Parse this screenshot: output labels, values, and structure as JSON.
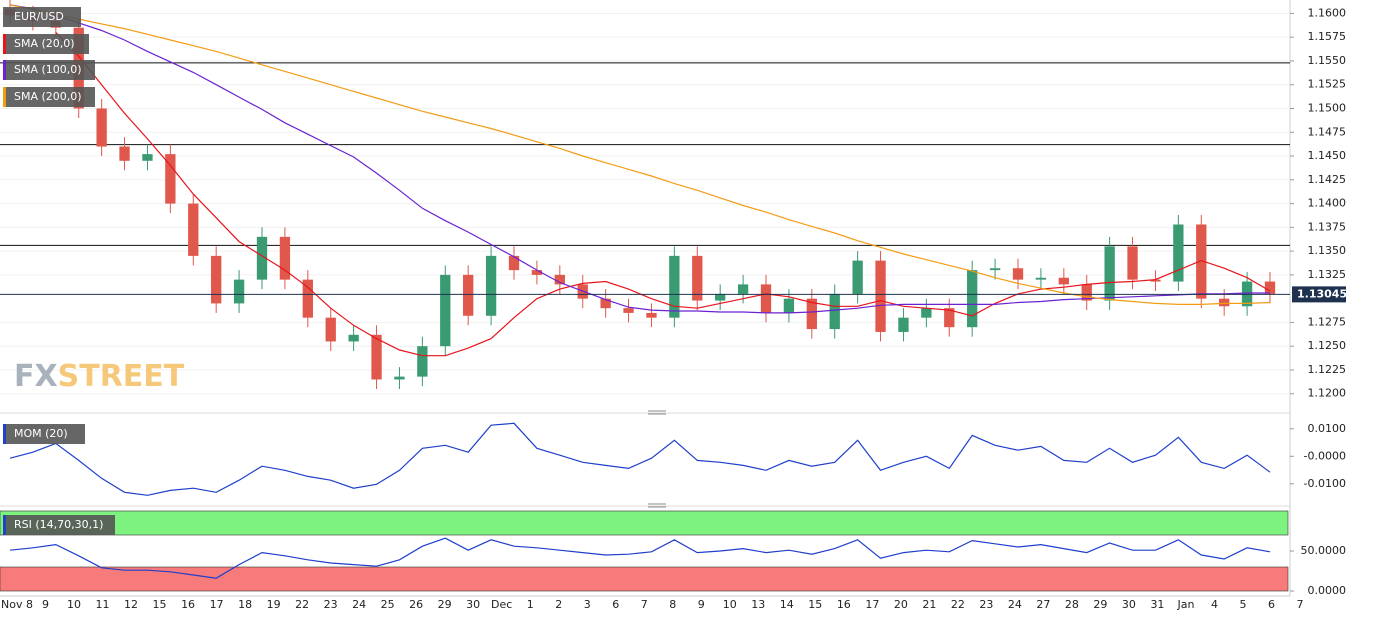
{
  "chart_data": [
    {
      "type": "candlestick",
      "title": "EUR/USD",
      "watermark": [
        "FX",
        "STREET"
      ],
      "x_axis_labels": [
        "Nov 8",
        "9",
        "10",
        "11",
        "12",
        "15",
        "16",
        "17",
        "18",
        "19",
        "22",
        "23",
        "24",
        "25",
        "26",
        "29",
        "30",
        "Dec",
        "1",
        "2",
        "3",
        "6",
        "7",
        "8",
        "9",
        "10",
        "13",
        "14",
        "15",
        "16",
        "17",
        "20",
        "21",
        "22",
        "23",
        "24",
        "27",
        "28",
        "29",
        "30",
        "31",
        "Jan",
        "4",
        "5",
        "6",
        "7"
      ],
      "open": [
        1.1605,
        1.1598,
        1.1592,
        1.1585,
        1.15,
        1.146,
        1.1445,
        1.1452,
        1.14,
        1.1345,
        1.1295,
        1.132,
        1.1365,
        1.132,
        1.128,
        1.1255,
        1.1262,
        1.1215,
        1.1218,
        1.125,
        1.1325,
        1.1282,
        1.1345,
        1.133,
        1.1325,
        1.1315,
        1.13,
        1.129,
        1.1285,
        1.128,
        1.1345,
        1.1298,
        1.1305,
        1.1315,
        1.1285,
        1.13,
        1.1268,
        1.1305,
        1.134,
        1.1265,
        1.128,
        1.129,
        1.127,
        1.133,
        1.1332,
        1.132,
        1.1322,
        1.1315,
        1.1298,
        1.1355,
        1.132,
        1.1318,
        1.1378,
        1.13,
        1.1292,
        1.1318
      ],
      "high": [
        1.1615,
        1.1608,
        1.1602,
        1.1595,
        1.151,
        1.147,
        1.1462,
        1.1462,
        1.141,
        1.1355,
        1.133,
        1.1375,
        1.1375,
        1.133,
        1.129,
        1.1272,
        1.1272,
        1.1228,
        1.126,
        1.1335,
        1.1335,
        1.1355,
        1.1355,
        1.134,
        1.1335,
        1.1325,
        1.131,
        1.13,
        1.1295,
        1.1355,
        1.1355,
        1.1315,
        1.1325,
        1.1325,
        1.131,
        1.131,
        1.1315,
        1.135,
        1.135,
        1.129,
        1.13,
        1.13,
        1.134,
        1.1342,
        1.1342,
        1.1332,
        1.1332,
        1.1325,
        1.1365,
        1.1365,
        1.133,
        1.1388,
        1.1388,
        1.131,
        1.1328,
        1.1328
      ],
      "low": [
        1.1588,
        1.1582,
        1.1575,
        1.149,
        1.145,
        1.1435,
        1.1435,
        1.139,
        1.1335,
        1.1285,
        1.1285,
        1.131,
        1.131,
        1.127,
        1.1245,
        1.1245,
        1.1205,
        1.1205,
        1.1208,
        1.124,
        1.1272,
        1.1272,
        1.132,
        1.1315,
        1.1305,
        1.129,
        1.128,
        1.1275,
        1.127,
        1.127,
        1.1288,
        1.1288,
        1.1295,
        1.1275,
        1.1275,
        1.1258,
        1.1258,
        1.1295,
        1.1255,
        1.1255,
        1.127,
        1.126,
        1.126,
        1.132,
        1.131,
        1.131,
        1.1305,
        1.1288,
        1.1288,
        1.131,
        1.1308,
        1.1308,
        1.129,
        1.1282,
        1.1282,
        1.1295
      ],
      "close": [
        1.1598,
        1.1592,
        1.1585,
        1.15,
        1.146,
        1.1445,
        1.1452,
        1.14,
        1.1345,
        1.1295,
        1.132,
        1.1365,
        1.132,
        1.128,
        1.1255,
        1.1262,
        1.1215,
        1.1218,
        1.125,
        1.1325,
        1.1282,
        1.1345,
        1.133,
        1.1325,
        1.1315,
        1.13,
        1.129,
        1.1285,
        1.128,
        1.1345,
        1.1298,
        1.1305,
        1.1315,
        1.1285,
        1.13,
        1.1268,
        1.1305,
        1.134,
        1.1265,
        1.128,
        1.129,
        1.127,
        1.133,
        1.1332,
        1.132,
        1.1322,
        1.1315,
        1.1298,
        1.1355,
        1.132,
        1.1318,
        1.1378,
        1.13,
        1.1292,
        1.1318,
        1.1305
      ],
      "up_color": "#3a9a72",
      "down_color": "#e0574c",
      "series": [
        {
          "name": "SMA (20,0)",
          "color": "#e8141c",
          "values": [
            null,
            null,
            1.158,
            1.1555,
            1.1525,
            1.1495,
            1.1468,
            1.144,
            1.141,
            1.1385,
            1.136,
            1.1345,
            1.133,
            1.1312,
            1.129,
            1.1272,
            1.1258,
            1.1246,
            1.124,
            1.124,
            1.1248,
            1.1258,
            1.128,
            1.13,
            1.131,
            1.1316,
            1.1318,
            1.131,
            1.13,
            1.1292,
            1.129,
            1.1295,
            1.13,
            1.1305,
            1.1302,
            1.1296,
            1.1292,
            1.1292,
            1.1298,
            1.1292,
            1.129,
            1.1288,
            1.1282,
            1.1295,
            1.1305,
            1.131,
            1.1312,
            1.1315,
            1.1317,
            1.1318,
            1.132,
            1.133,
            1.134,
            1.1332,
            1.1322,
            1.1308
          ]
        },
        {
          "name": "SMA (100,0)",
          "color": "#6a22d2",
          "values": [
            1.1609,
            1.1605,
            1.1598,
            1.159,
            1.1582,
            1.1572,
            1.156,
            1.1549,
            1.1538,
            1.1525,
            1.1512,
            1.1499,
            1.1485,
            1.1473,
            1.1461,
            1.1449,
            1.1432,
            1.1414,
            1.1395,
            1.1382,
            1.137,
            1.1357,
            1.1344,
            1.133,
            1.1317,
            1.1308,
            1.1299,
            1.1291,
            1.1288,
            1.1287,
            1.1287,
            1.1286,
            1.1286,
            1.1285,
            1.1285,
            1.1286,
            1.1288,
            1.129,
            1.1293,
            1.1294,
            1.1294,
            1.1294,
            1.1294,
            1.1294,
            1.1296,
            1.1297,
            1.1299,
            1.13,
            1.1301,
            1.1302,
            1.1303,
            1.1304,
            1.1305,
            1.1305,
            1.1306,
            1.1306
          ]
        },
        {
          "name": "SMA (200,0)",
          "color": "#f39c12",
          "values": [
            1.1609,
            1.1604,
            1.1599,
            1.1594,
            1.1589,
            1.1584,
            1.1578,
            1.1572,
            1.1566,
            1.156,
            1.1553,
            1.1546,
            1.1539,
            1.1532,
            1.1525,
            1.1518,
            1.1511,
            1.1504,
            1.1497,
            1.1491,
            1.1485,
            1.1479,
            1.1472,
            1.1465,
            1.1458,
            1.145,
            1.1443,
            1.1436,
            1.1429,
            1.1421,
            1.1414,
            1.1406,
            1.1398,
            1.1391,
            1.1383,
            1.1376,
            1.1369,
            1.1361,
            1.1354,
            1.1347,
            1.1341,
            1.1335,
            1.1329,
            1.1322,
            1.1316,
            1.1311,
            1.1306,
            1.1302,
            1.1299,
            1.1297,
            1.1295,
            1.1294,
            1.1294,
            1.1295,
            1.1295,
            1.1296
          ]
        }
      ],
      "hlines": [
        1.1548,
        1.1462,
        1.1356
      ],
      "last_price": 1.13045,
      "ylim": [
        1.1185,
        1.1612
      ],
      "yticks": [
        {
          "value": 1.16,
          "label": "1.1600"
        },
        {
          "value": 1.1575,
          "label": "1.1575"
        },
        {
          "value": 1.155,
          "label": "1.1550"
        },
        {
          "value": 1.1525,
          "label": "1.1525"
        },
        {
          "value": 1.15,
          "label": "1.1500"
        },
        {
          "value": 1.1475,
          "label": "1.1475"
        },
        {
          "value": 1.145,
          "label": "1.1450"
        },
        {
          "value": 1.1425,
          "label": "1.1425"
        },
        {
          "value": 1.14,
          "label": "1.1400"
        },
        {
          "value": 1.1375,
          "label": "1.1375"
        },
        {
          "value": 1.135,
          "label": "1.1350"
        },
        {
          "value": 1.1325,
          "label": "1.1325"
        },
        {
          "value": 1.1275,
          "label": "1.1275"
        },
        {
          "value": 1.125,
          "label": "1.1250"
        },
        {
          "value": 1.1225,
          "label": "1.1225"
        },
        {
          "value": 1.12,
          "label": "1.1200"
        }
      ],
      "grid": true
    },
    {
      "type": "line",
      "series": [
        {
          "name": "MOM (20)",
          "color": "#1f3fcc",
          "values": [
            -0.0007,
            0.0015,
            0.0047,
            -0.0015,
            -0.008,
            -0.0131,
            -0.0142,
            -0.0124,
            -0.0116,
            -0.0131,
            -0.0087,
            -0.0036,
            -0.0051,
            -0.0073,
            -0.0087,
            -0.0116,
            -0.0102,
            -0.0051,
            0.0029,
            0.004,
            0.0015,
            0.0113,
            0.012,
            0.0029,
            0.0004,
            -0.0022,
            -0.0033,
            -0.0044,
            -0.0007,
            0.0058,
            -0.0015,
            -0.0022,
            -0.0033,
            -0.0051,
            -0.0015,
            -0.0036,
            -0.0022,
            0.0058,
            -0.0051,
            -0.0022,
            0.0,
            -0.0044,
            0.0076,
            0.004,
            0.0022,
            0.0036,
            -0.0015,
            -0.0022,
            0.0029,
            -0.0022,
            0.0004,
            0.0069,
            -0.0022,
            -0.0044,
            0.0004,
            -0.0058
          ]
        }
      ],
      "ylim": [
        -0.0159,
        0.0132
      ],
      "yticks": [
        {
          "value": 0.01,
          "label": "0.0100"
        },
        {
          "value": 0,
          "label": "-0.0000"
        },
        {
          "value": -0.01,
          "label": "-0.0100"
        }
      ]
    },
    {
      "type": "line",
      "series": [
        {
          "name": "RSI (14,70,30,1)",
          "color": "#1f3fcc",
          "values": [
            51,
            54,
            58,
            44,
            29,
            26,
            26,
            24,
            20,
            16,
            33,
            48,
            44,
            39,
            35,
            33,
            31,
            39,
            56,
            66,
            51,
            64,
            56,
            54,
            51,
            48,
            45,
            46,
            49,
            64,
            48,
            50,
            53,
            48,
            51,
            46,
            53,
            64,
            41,
            48,
            51,
            49,
            63,
            59,
            55,
            58,
            53,
            48,
            60,
            51,
            51,
            64,
            45,
            40,
            54,
            49
          ]
        }
      ],
      "overbought": 70,
      "oversold": 30,
      "overbought_color": "#7ef27e",
      "oversold_color": "#f77b7b",
      "ylim": [
        0,
        100
      ],
      "yticks": [
        {
          "value": 50,
          "label": "50.0000"
        },
        {
          "value": 0,
          "label": "0.0000"
        }
      ]
    }
  ]
}
